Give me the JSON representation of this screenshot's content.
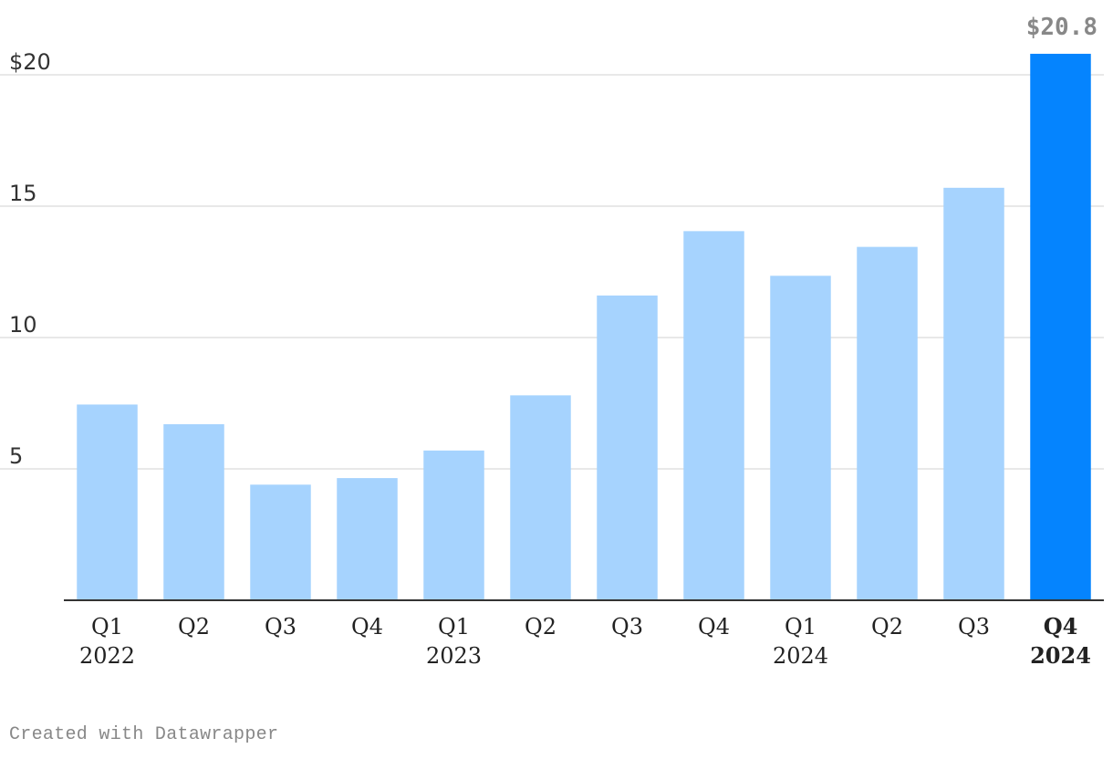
{
  "chart_data": {
    "type": "bar",
    "categories": [
      "Q1 2022",
      "Q2 2022",
      "Q3 2022",
      "Q4 2022",
      "Q1 2023",
      "Q2 2023",
      "Q3 2023",
      "Q4 2023",
      "Q1 2024",
      "Q2 2024",
      "Q3 2024",
      "Q4 2024"
    ],
    "x_tick_labels": [
      {
        "quarter": "Q1",
        "year": "2022"
      },
      {
        "quarter": "Q2",
        "year": ""
      },
      {
        "quarter": "Q3",
        "year": ""
      },
      {
        "quarter": "Q4",
        "year": ""
      },
      {
        "quarter": "Q1",
        "year": "2023"
      },
      {
        "quarter": "Q2",
        "year": ""
      },
      {
        "quarter": "Q3",
        "year": ""
      },
      {
        "quarter": "Q4",
        "year": ""
      },
      {
        "quarter": "Q1",
        "year": "2024"
      },
      {
        "quarter": "Q2",
        "year": ""
      },
      {
        "quarter": "Q3",
        "year": ""
      },
      {
        "quarter": "Q4",
        "year": "2024"
      }
    ],
    "values": [
      7.45,
      6.7,
      4.4,
      4.65,
      5.7,
      7.8,
      11.6,
      14.05,
      12.35,
      13.45,
      15.7,
      20.8
    ],
    "highlight_index": 11,
    "highlight_label": "$20.8",
    "y_ticks": [
      5,
      10,
      15,
      20
    ],
    "y_tick_labels": [
      "5",
      "10",
      "15",
      "$20"
    ],
    "ylim": [
      0,
      21
    ],
    "grid": true,
    "title": "",
    "xlabel": "",
    "ylabel": "",
    "colors": {
      "bar": "#a6d3fe",
      "highlight": "#0584fe",
      "grid": "#e1e1e1",
      "axis": "#333333",
      "label": "#888888"
    }
  },
  "credit": "Created with Datawrapper"
}
